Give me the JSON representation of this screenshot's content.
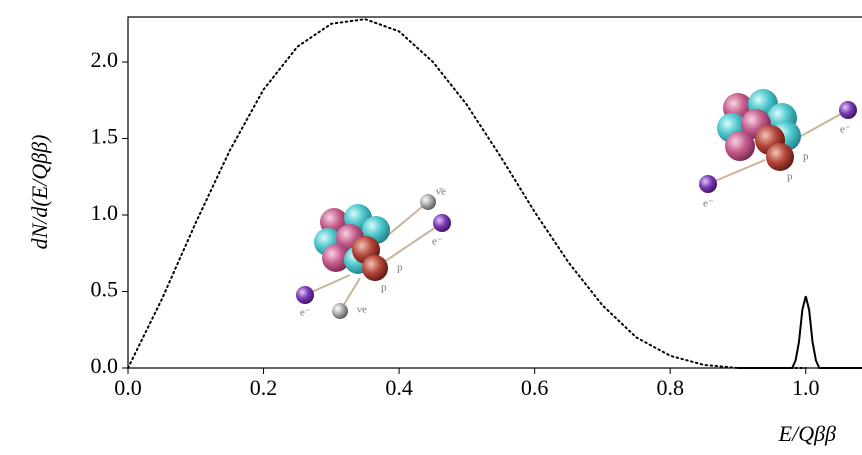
{
  "chart_data": {
    "type": "line",
    "xlabel": "E/Qββ",
    "ylabel": "dN/d(E/Qββ)",
    "xlim": [
      0,
      1.083
    ],
    "ylim": [
      0,
      2.294
    ],
    "xticks": [
      {
        "value": 0,
        "label": "0.0"
      },
      {
        "value": 0.2,
        "label": "0.2"
      },
      {
        "value": 0.4,
        "label": "0.4"
      },
      {
        "value": 0.6,
        "label": "0.6"
      },
      {
        "value": 0.8,
        "label": "0.8"
      },
      {
        "value": 1,
        "label": "1.0"
      }
    ],
    "yticks": [
      {
        "value": 0,
        "label": "0.0"
      },
      {
        "value": 0.5,
        "label": "0.5"
      },
      {
        "value": 1,
        "label": "1.0"
      },
      {
        "value": 1.5,
        "label": "1.5"
      },
      {
        "value": 2,
        "label": "2.0"
      }
    ],
    "series": [
      {
        "color": "#000000",
        "line_style": "dotted",
        "x": [
          0,
          0.05,
          0.1,
          0.15,
          0.2,
          0.25,
          0.3,
          0.35,
          0.4,
          0.45,
          0.5,
          0.55,
          0.6,
          0.65,
          0.7,
          0.75,
          0.8,
          0.85,
          0.9,
          0.95,
          1.0
        ],
        "values": [
          0,
          0.45,
          0.95,
          1.42,
          1.82,
          2.1,
          2.25,
          2.28,
          2.2,
          2.0,
          1.72,
          1.38,
          1.02,
          0.69,
          0.41,
          0.2,
          0.08,
          0.02,
          0,
          0,
          0
        ]
      },
      {
        "color": "#000000",
        "line_style": "solid",
        "x": [
          0.9,
          0.98,
          0.985,
          0.99,
          0.995,
          1.0,
          1.005,
          1.01,
          1.015,
          1.02,
          1.083
        ],
        "values": [
          0,
          0,
          0.05,
          0.17,
          0.38,
          0.47,
          0.38,
          0.17,
          0.05,
          0,
          0
        ]
      }
    ],
    "annotations": [
      "ν̄e",
      "e⁻",
      "p",
      "p",
      "e⁻",
      "νe",
      "e⁻",
      "p",
      "p",
      "e⁻"
    ]
  }
}
